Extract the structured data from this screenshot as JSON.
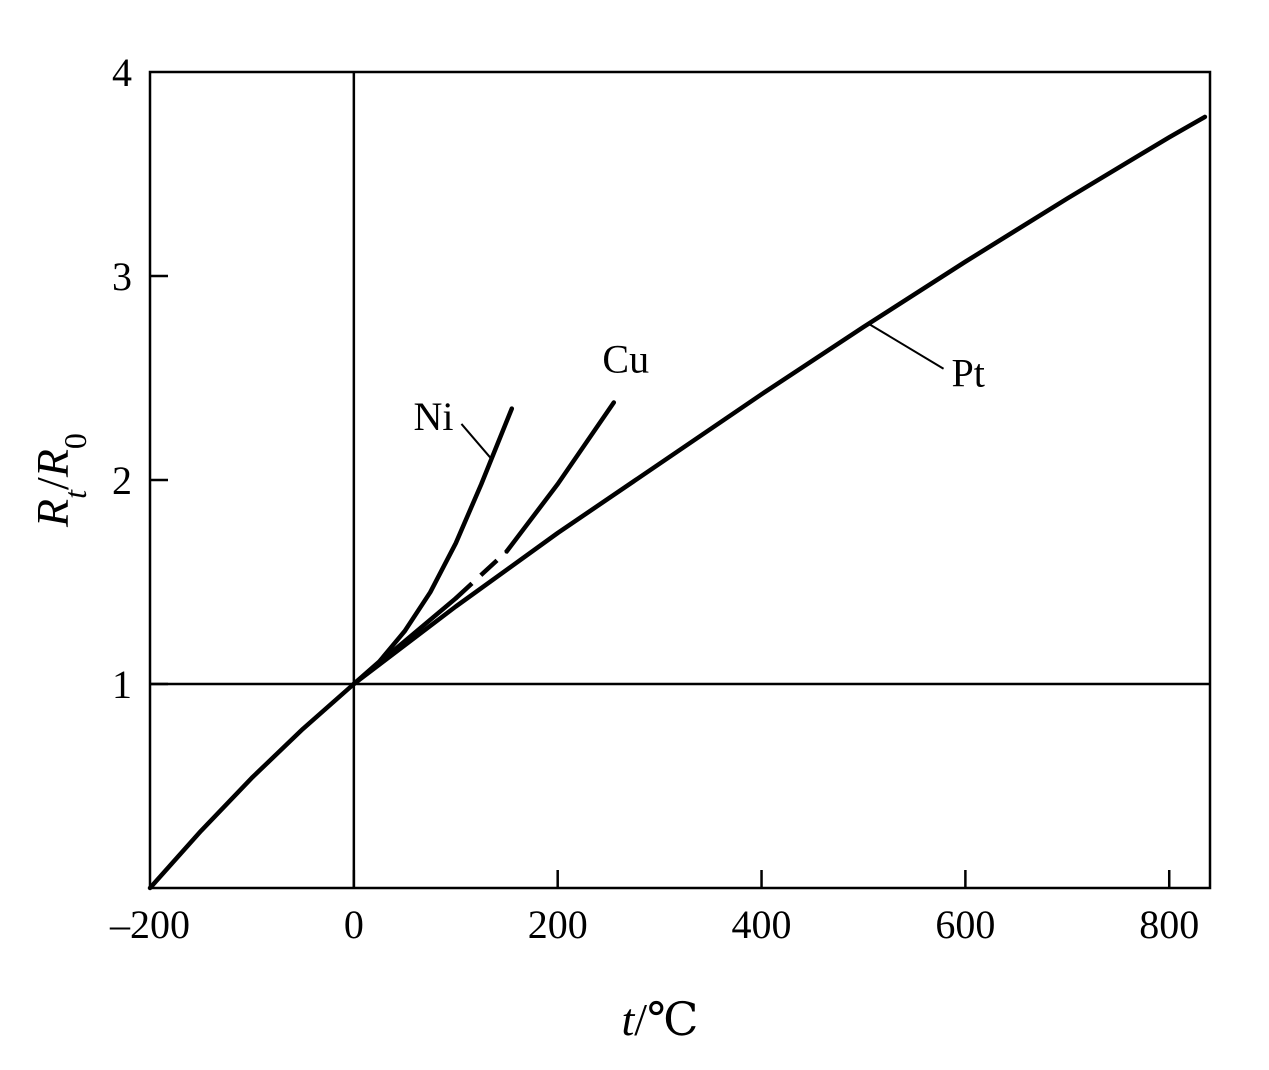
{
  "chart_data": {
    "type": "line",
    "title": "",
    "xlabel": {
      "var": "t",
      "sep": "/",
      "unit": "℃"
    },
    "ylabel": {
      "num_var": "R",
      "num_sub": "t",
      "sep": "/",
      "den_var": "R",
      "den_sub": "0"
    },
    "xlim": [
      -200,
      840
    ],
    "ylim": [
      0,
      4
    ],
    "x_ticks": [
      -200,
      0,
      200,
      400,
      600,
      800
    ],
    "y_ticks": [
      1,
      2,
      3,
      4
    ],
    "grid": false,
    "reference_lines": {
      "x": 0,
      "y": 1
    },
    "series": [
      {
        "name": "Pt",
        "x": [
          -200,
          -150,
          -100,
          -50,
          0,
          50,
          100,
          150,
          200,
          300,
          400,
          500,
          600,
          700,
          800,
          835
        ],
        "y": [
          0.0,
          0.28,
          0.54,
          0.78,
          1.0,
          1.19,
          1.38,
          1.56,
          1.74,
          2.08,
          2.42,
          2.75,
          3.07,
          3.38,
          3.68,
          3.78
        ]
      },
      {
        "name": "Cu",
        "x": [
          0,
          50,
          100,
          150,
          200,
          255
        ],
        "y": [
          1.0,
          1.21,
          1.42,
          1.65,
          1.98,
          2.38
        ],
        "dashed_range": [
          100,
          150
        ]
      },
      {
        "name": "Ni",
        "x": [
          0,
          25,
          50,
          75,
          100,
          125,
          155
        ],
        "y": [
          1.0,
          1.11,
          1.26,
          1.45,
          1.69,
          1.98,
          2.35
        ]
      }
    ],
    "annotations": [
      {
        "text": "Pt",
        "series": "Pt"
      },
      {
        "text": "Cu",
        "series": "Cu"
      },
      {
        "text": "Ni",
        "series": "Ni"
      }
    ]
  }
}
